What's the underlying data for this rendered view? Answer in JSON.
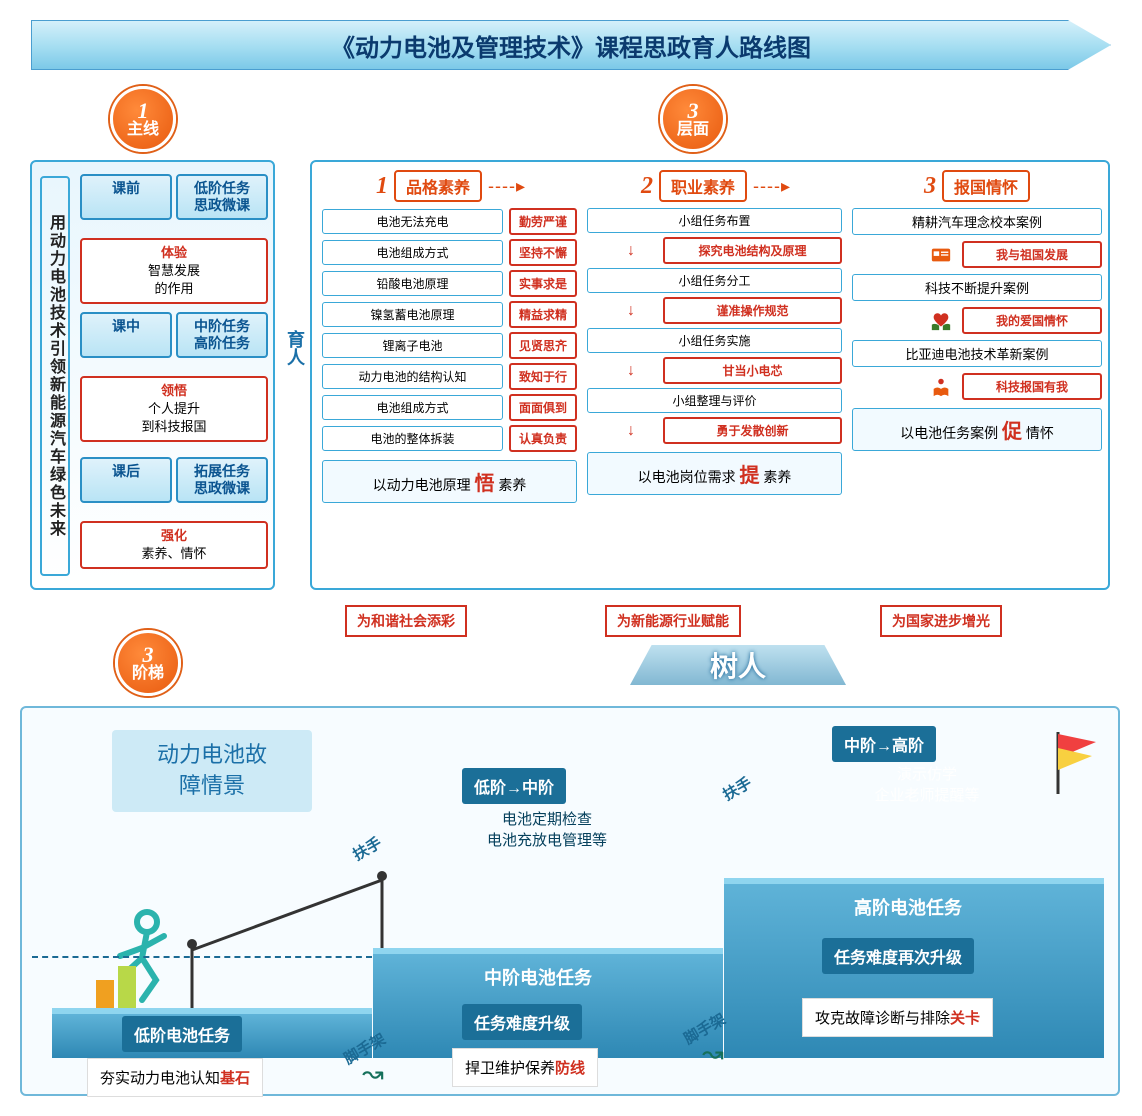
{
  "title": "《动力电池及管理技术》课程思政育人路线图",
  "badges": {
    "b1": {
      "num": "1",
      "txt": "主线"
    },
    "b2": {
      "num": "3",
      "txt": "层面"
    },
    "b3": {
      "num": "3",
      "txt": "阶梯"
    }
  },
  "mainline_vertical": "用动力电池技术引领新能源汽车绿色未来",
  "phases": {
    "pre": {
      "stage": "课前",
      "task": "低阶任务\n思政微课",
      "kw": "体验",
      "res": "智慧发展\n的作用"
    },
    "mid": {
      "stage": "课中",
      "task": "中阶任务\n高阶任务",
      "kw": "领悟",
      "res": "个人提升\n到科技报国"
    },
    "post": {
      "stage": "课后",
      "task": "拓展任务\n思政微课",
      "kw": "强化",
      "res": "素养、情怀"
    }
  },
  "connector_left": "育人",
  "connector_bottom": "树人",
  "columns": {
    "c1": {
      "num": "1",
      "title": "品格素养",
      "items": [
        {
          "l": "电池无法充电",
          "r": "勤劳严谨"
        },
        {
          "l": "电池组成方式",
          "r": "坚持不懈"
        },
        {
          "l": "铅酸电池原理",
          "r": "实事求是"
        },
        {
          "l": "镍氢蓄电池原理",
          "r": "精益求精"
        },
        {
          "l": "锂离子电池",
          "r": "见贤思齐"
        },
        {
          "l": "动力电池的结构认知",
          "r": "致知于行"
        },
        {
          "l": "电池组成方式",
          "r": "面面俱到"
        },
        {
          "l": "电池的整体拆装",
          "r": "认真负责"
        }
      ],
      "summary_pre": "以动力电池原理",
      "summary_scr": "悟",
      "summary_post": "素养",
      "tag": "为和谐社会添彩"
    },
    "c2": {
      "num": "2",
      "title": "职业素养",
      "flow": [
        {
          "t": "小组任务布置"
        },
        {
          "sub": "探究电池结构及原理"
        },
        {
          "t": "小组任务分工"
        },
        {
          "sub": "谨准操作规范"
        },
        {
          "t": "小组任务实施"
        },
        {
          "sub": "甘当小电芯"
        },
        {
          "t": "小组整理与评价"
        },
        {
          "sub": "勇于发散创新"
        }
      ],
      "summary_pre": "以电池岗位需求",
      "summary_scr": "提",
      "summary_post": "素养",
      "tag": "为新能源行业赋能"
    },
    "c3": {
      "num": "3",
      "title": "报国情怀",
      "cases": [
        {
          "case": "精耕汽车理念校本案例",
          "red": "我与祖国发展",
          "icon": "id-card-icon",
          "icon_color": "#e85a0f"
        },
        {
          "case": "科技不断提升案例",
          "red": "我的爱国情怀",
          "icon": "hands-heart-icon",
          "icon_color": "#d03020"
        },
        {
          "case": "比亚迪电池技术革新案例",
          "red": "科技报国有我",
          "icon": "reader-icon",
          "icon_color": "#e85a0f"
        }
      ],
      "summary_pre": "以电池任务案例",
      "summary_scr": "促",
      "summary_post": "情怀",
      "tag": "为国家进步增光"
    }
  },
  "bottom": {
    "scene": "动力电池故\n障情景",
    "steps": [
      {
        "level": "低阶电池任务",
        "headline": "",
        "detail": "夯实动力电池认知",
        "hl": "基石"
      },
      {
        "level": "中阶电池任务",
        "trans": "低阶→中阶",
        "trans_detail": "电池定期检查\n电池充放电管理等",
        "headline": "任务难度升级",
        "detail": "捍卫维护保养",
        "hl": "防线"
      },
      {
        "level": "高阶电池任务",
        "trans": "中阶→高阶",
        "trans_detail": "演示仿学\n企业老师提醒等",
        "headline": "任务难度再次升级",
        "detail": "攻克故障诊断与排除",
        "hl": "关卡"
      }
    ],
    "scaffold": "脚手架",
    "handrail": "扶手"
  },
  "colors": {
    "blue": "#3aa8d8",
    "darkblue": "#0a5490",
    "orange": "#e85a0f",
    "red": "#d03020",
    "steel": "#2e88b4"
  }
}
